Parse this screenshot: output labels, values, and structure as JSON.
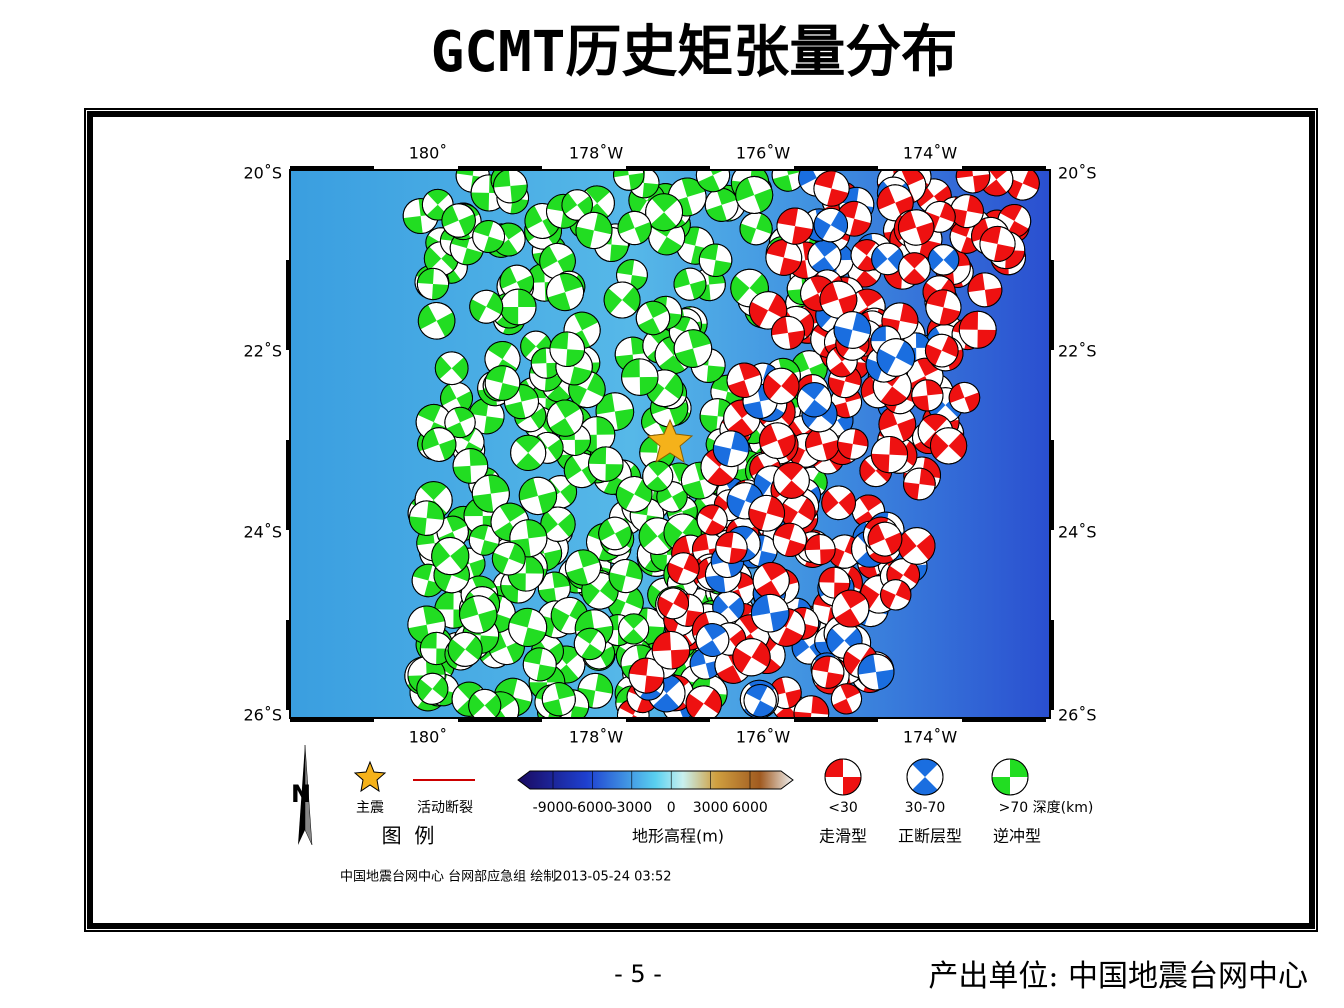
{
  "title": "GCMT历史矩张量分布",
  "map": {
    "lon_labels": [
      "180˚",
      "178˚W",
      "176˚W",
      "174˚W"
    ],
    "lat_labels": [
      "20˚S",
      "22˚S",
      "24˚S",
      "26˚S"
    ]
  },
  "legend": {
    "star": "主震",
    "fault": "活动断裂",
    "heading": "图  例",
    "colorbar_ticks": [
      -9000,
      -6000,
      -3000,
      0,
      3000,
      6000
    ],
    "colorbar_title": "地形高程(m)",
    "depth_labels": [
      "<30",
      "30-70",
      ">70 深度(km)"
    ],
    "mechanisms": [
      "走滑型",
      "正断层型",
      "逆冲型"
    ]
  },
  "footer": {
    "credit": "中国地震台网中心 台网部应急组 绘制",
    "timestamp": "2013-05-24 03:52"
  },
  "page_number": "- 5 -",
  "producer": "产出单位: 中国地震台网中心"
}
